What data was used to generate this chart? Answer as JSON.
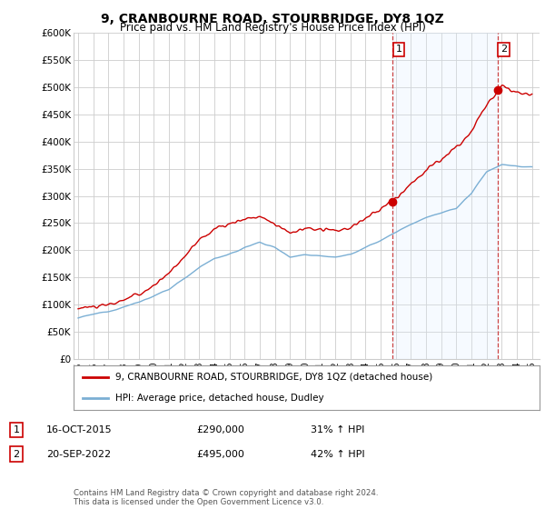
{
  "title": "9, CRANBOURNE ROAD, STOURBRIDGE, DY8 1QZ",
  "subtitle": "Price paid vs. HM Land Registry's House Price Index (HPI)",
  "ylabel_ticks": [
    "£0",
    "£50K",
    "£100K",
    "£150K",
    "£200K",
    "£250K",
    "£300K",
    "£350K",
    "£400K",
    "£450K",
    "£500K",
    "£550K",
    "£600K"
  ],
  "ylim": [
    0,
    600000
  ],
  "ytick_vals": [
    0,
    50000,
    100000,
    150000,
    200000,
    250000,
    300000,
    350000,
    400000,
    450000,
    500000,
    550000,
    600000
  ],
  "xlim_start": 1994.7,
  "xlim_end": 2025.5,
  "hpi_color": "#7bafd4",
  "hpi_fill_color": "#ddeeff",
  "price_color": "#cc0000",
  "sale1_x": 2015.79,
  "sale1_y": 290000,
  "sale2_x": 2022.72,
  "sale2_y": 495000,
  "legend_line1": "9, CRANBOURNE ROAD, STOURBRIDGE, DY8 1QZ (detached house)",
  "legend_line2": "HPI: Average price, detached house, Dudley",
  "footer": "Contains HM Land Registry data © Crown copyright and database right 2024.\nThis data is licensed under the Open Government Licence v3.0.",
  "background_color": "#ffffff",
  "grid_color": "#cccccc",
  "dashed_line_color": "#cc4444"
}
